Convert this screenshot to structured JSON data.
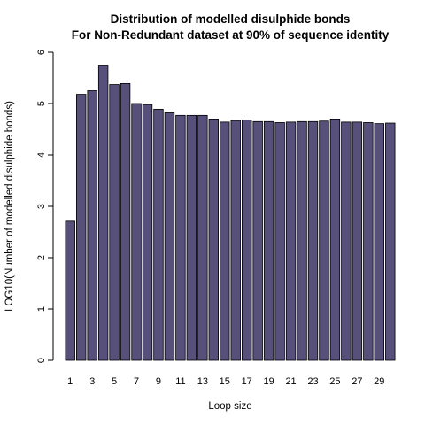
{
  "chart_data": {
    "type": "bar",
    "title_line1": "Distribution of modelled disulphide bonds",
    "title_line2": "For Non-Redundant dataset at 90% of sequence identity",
    "xlabel": "Loop size",
    "ylabel": "LOG10(Number of modelled disulphide bonds)",
    "categories": [
      1,
      2,
      3,
      4,
      5,
      6,
      7,
      8,
      9,
      10,
      11,
      12,
      13,
      14,
      15,
      16,
      17,
      18,
      19,
      20,
      21,
      22,
      23,
      24,
      25,
      26,
      27,
      28,
      29,
      30
    ],
    "values": [
      2.71,
      5.18,
      5.25,
      5.75,
      5.37,
      5.39,
      5.0,
      4.98,
      4.89,
      4.82,
      4.77,
      4.77,
      4.77,
      4.7,
      4.64,
      4.67,
      4.68,
      4.65,
      4.65,
      4.63,
      4.64,
      4.65,
      4.65,
      4.66,
      4.7,
      4.64,
      4.64,
      4.63,
      4.61,
      4.62
    ],
    "x_tick_labels": [
      "1",
      "3",
      "5",
      "7",
      "9",
      "11",
      "13",
      "15",
      "17",
      "19",
      "21",
      "23",
      "25",
      "27",
      "29"
    ],
    "y_tick_labels": [
      "0",
      "1",
      "2",
      "3",
      "4",
      "5",
      "6"
    ],
    "ylim": [
      0,
      6
    ],
    "bar_color": "#56507a",
    "bar_border": "#000000",
    "grid": false,
    "legend": "none"
  }
}
